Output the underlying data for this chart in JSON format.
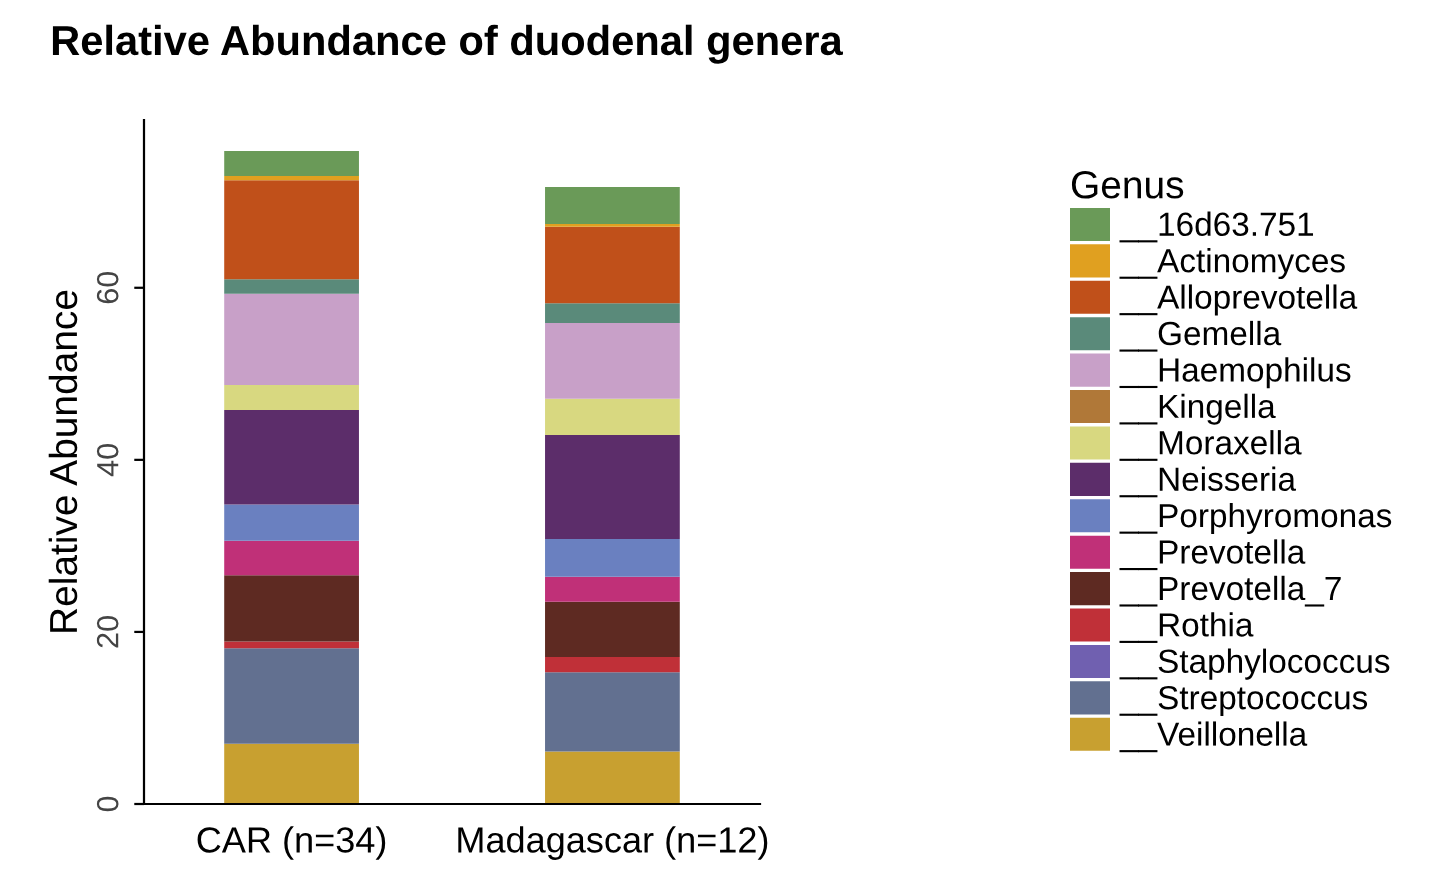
{
  "chart_data": {
    "type": "bar",
    "title": "Relative Abundance of duodenal genera",
    "ylabel": "Relative Abundance",
    "legend_title": "Genus",
    "categories": [
      "CAR (n=34)",
      "Madagascar (n=12)"
    ],
    "stacked": true,
    "ylim": [
      0,
      79.5
    ],
    "yticks": [
      0,
      20,
      40,
      60
    ],
    "grid": false,
    "legend": "right",
    "series": [
      {
        "name": "__Veillonella",
        "color": "#c8a030",
        "values": [
          7.0,
          6.1
        ]
      },
      {
        "name": "__Streptococcus",
        "color": "#627090",
        "values": [
          11.1,
          9.2
        ]
      },
      {
        "name": "__Staphylococcus",
        "color": "#7060b0",
        "values": [
          0,
          0
        ]
      },
      {
        "name": "__Rothia",
        "color": "#c03038",
        "values": [
          0.8,
          1.8
        ]
      },
      {
        "name": "__Prevotella_7",
        "color": "#5e2a22",
        "values": [
          7.7,
          6.4
        ]
      },
      {
        "name": "__Prevotella",
        "color": "#c03078",
        "values": [
          4.0,
          2.9
        ]
      },
      {
        "name": "__Porphyromonas",
        "color": "#6a80c0",
        "values": [
          4.2,
          4.4
        ]
      },
      {
        "name": "__Neisseria",
        "color": "#5c2d6a",
        "values": [
          11.0,
          12.1
        ]
      },
      {
        "name": "__Moraxella",
        "color": "#d8d880",
        "values": [
          2.9,
          4.2
        ]
      },
      {
        "name": "__Kingella",
        "color": "#b07838",
        "values": [
          0,
          0
        ]
      },
      {
        "name": "__Haemophilus",
        "color": "#c8a0c8",
        "values": [
          10.6,
          8.8
        ]
      },
      {
        "name": "__Gemella",
        "color": "#5a8a7a",
        "values": [
          1.7,
          2.3
        ]
      },
      {
        "name": "__Alloprevotella",
        "color": "#c0501a",
        "values": [
          11.5,
          8.9
        ]
      },
      {
        "name": "__Actinomyces",
        "color": "#e0a020",
        "values": [
          0.5,
          0.3
        ]
      },
      {
        "name": "__16d63.751",
        "color": "#6a9a58",
        "values": [
          2.9,
          4.3
        ]
      }
    ]
  }
}
